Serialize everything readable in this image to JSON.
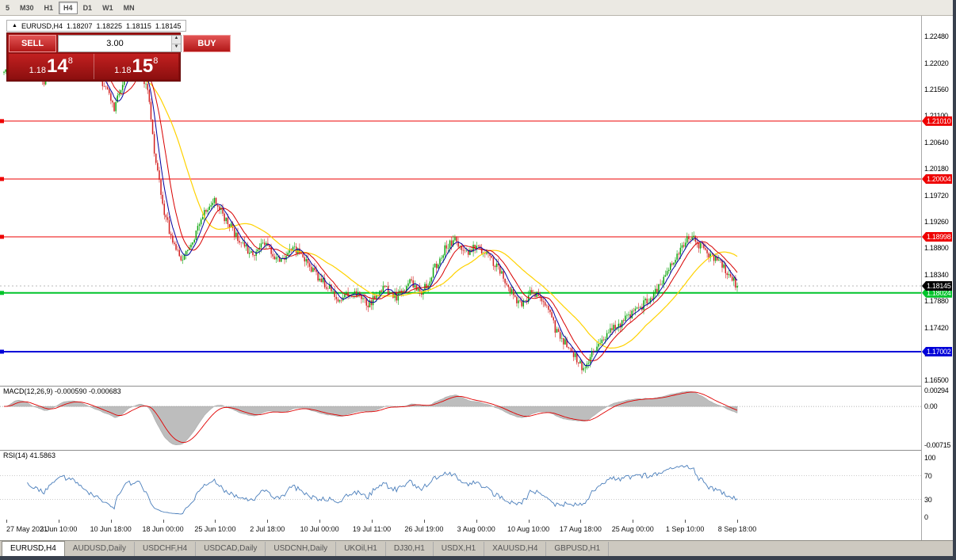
{
  "colors": {
    "bull": "#0CA50C",
    "bear": "#D32020",
    "macd_hist": "#BDBDBD",
    "macd_signal": "#E00000",
    "rsi_line": "#4A7EBB",
    "panel_red": "#C62828",
    "line_red": "#EE0000",
    "line_green": "#00C42B",
    "line_blue": "#0000D8"
  },
  "toolbar": {
    "timeframes": [
      "5",
      "M30",
      "H1",
      "H4",
      "D1",
      "W1",
      "MN"
    ],
    "active": "H4"
  },
  "chart_header": {
    "collapse_icon": "▲",
    "title": "EURUSD,H4",
    "open": "1.18207",
    "high": "1.18225",
    "low": "1.18115",
    "close": "1.18145"
  },
  "trade_panel": {
    "sell_label": "SELL",
    "buy_label": "BUY",
    "volume": "3.00",
    "spin_up_icon": "▲",
    "spin_down_icon": "▼",
    "sell_price": {
      "prefix": "1.18",
      "big": "14",
      "sup": "8"
    },
    "buy_price": {
      "prefix": "1.18",
      "big": "15",
      "sup": "8"
    }
  },
  "price_scale": {
    "values": [
      1.2248,
      1.2202,
      1.2156,
      1.211,
      1.2064,
      1.2018,
      1.1972,
      1.1926,
      1.188,
      1.1834,
      1.1788,
      1.1742,
      1.1696,
      1.165
    ]
  },
  "hlines": [
    {
      "price": 1.2101,
      "label": "1.21010",
      "color": "#EE0000",
      "width": 1
    },
    {
      "price": 1.20004,
      "label": "1.20004",
      "color": "#EE0000",
      "width": 1
    },
    {
      "price": 1.18998,
      "label": "1.18998",
      "color": "#EE0000",
      "width": 1
    },
    {
      "price": 1.18024,
      "label": "1.18024",
      "color": "#00C42B",
      "width": 2
    },
    {
      "price": 1.17002,
      "label": "1.17002",
      "color": "#0000D8",
      "width": 2
    }
  ],
  "current_price": {
    "value": 1.18145,
    "label": "1.18145",
    "color": "#000000"
  },
  "macd": {
    "label": "MACD(12,26,9) -0.000590 -0.000683",
    "values": [
      -0.00059,
      -0.000683
    ],
    "scale": [
      {
        "label": "0.00294",
        "value": 0.00294
      },
      {
        "label": "0.00",
        "value": 0
      },
      {
        "label": "-0.00715",
        "value": -0.00715
      }
    ]
  },
  "rsi": {
    "label": "RSI(14) 41.5863",
    "value": 41.5863,
    "levels": [
      70,
      30
    ],
    "scale": [
      {
        "label": "100",
        "value": 100
      },
      {
        "label": "70",
        "value": 70
      },
      {
        "label": "30",
        "value": 30
      },
      {
        "label": "0",
        "value": 0
      }
    ]
  },
  "time_axis": [
    "27 May 2021",
    "3 Jun 10:00",
    "10 Jun 18:00",
    "18 Jun 00:00",
    "25 Jun 10:00",
    "2 Jul 18:00",
    "10 Jul 00:00",
    "19 Jul 11:00",
    "26 Jul 19:00",
    "3 Aug 00:00",
    "10 Aug 10:00",
    "17 Aug 18:00",
    "25 Aug 00:00",
    "1 Sep 10:00",
    "8 Sep 18:00"
  ],
  "tabs": [
    {
      "label": "EURUSD,H4",
      "active": true
    },
    {
      "label": "AUDUSD,Daily",
      "active": false
    },
    {
      "label": "USDCHF,H4",
      "active": false
    },
    {
      "label": "USDCAD,Daily",
      "active": false
    },
    {
      "label": "USDCNH,Daily",
      "active": false
    },
    {
      "label": "UKOil,H1",
      "active": false
    },
    {
      "label": "DJ30,H1",
      "active": false
    },
    {
      "label": "USDX,H1",
      "active": false
    },
    {
      "label": "XAUUSD,H4",
      "active": false
    },
    {
      "label": "GBPUSD,H1",
      "active": false
    }
  ],
  "chart_data": {
    "type": "candlestick",
    "symbol": "EURUSD",
    "timeframe": "H4",
    "title": "EURUSD,H4",
    "last_ohlc": {
      "open": 1.18207,
      "high": 1.18225,
      "low": 1.18115,
      "close": 1.18145
    },
    "y_range": [
      1.1641,
      1.2284
    ],
    "x_labels": [
      "27 May 2021",
      "3 Jun 10:00",
      "10 Jun 18:00",
      "18 Jun 00:00",
      "25 Jun 10:00",
      "2 Jul 18:00",
      "10 Jul 00:00",
      "19 Jul 11:00",
      "26 Jul 19:00",
      "3 Aug 00:00",
      "10 Aug 10:00",
      "17 Aug 18:00",
      "25 Aug 00:00",
      "1 Sep 10:00",
      "8 Sep 18:00"
    ],
    "num_candles": 440,
    "volatility": 0.0009,
    "last_close": 1.18145,
    "price_path": [
      [
        0.0,
        1.2185
      ],
      [
        0.015,
        1.2238
      ],
      [
        0.035,
        1.2197
      ],
      [
        0.055,
        1.2172
      ],
      [
        0.075,
        1.2225
      ],
      [
        0.095,
        1.2232
      ],
      [
        0.115,
        1.22
      ],
      [
        0.135,
        1.2168
      ],
      [
        0.15,
        1.2122
      ],
      [
        0.165,
        1.218
      ],
      [
        0.182,
        1.2196
      ],
      [
        0.196,
        1.2158
      ],
      [
        0.206,
        1.204
      ],
      [
        0.216,
        1.1958
      ],
      [
        0.228,
        1.1898
      ],
      [
        0.242,
        1.1856
      ],
      [
        0.256,
        1.1884
      ],
      [
        0.272,
        1.1942
      ],
      [
        0.286,
        1.1966
      ],
      [
        0.302,
        1.193
      ],
      [
        0.32,
        1.1898
      ],
      [
        0.336,
        1.187
      ],
      [
        0.356,
        1.1886
      ],
      [
        0.376,
        1.1858
      ],
      [
        0.396,
        1.188
      ],
      [
        0.416,
        1.1848
      ],
      [
        0.436,
        1.182
      ],
      [
        0.456,
        1.1794
      ],
      [
        0.476,
        1.1806
      ],
      [
        0.496,
        1.178
      ],
      [
        0.516,
        1.1812
      ],
      [
        0.536,
        1.1796
      ],
      [
        0.556,
        1.1822
      ],
      [
        0.57,
        1.18
      ],
      [
        0.586,
        1.1842
      ],
      [
        0.602,
        1.1882
      ],
      [
        0.616,
        1.1896
      ],
      [
        0.63,
        1.187
      ],
      [
        0.646,
        1.1886
      ],
      [
        0.662,
        1.1864
      ],
      [
        0.678,
        1.1838
      ],
      [
        0.694,
        1.1798
      ],
      [
        0.706,
        1.1778
      ],
      [
        0.72,
        1.1806
      ],
      [
        0.736,
        1.1788
      ],
      [
        0.752,
        1.174
      ],
      [
        0.766,
        1.1714
      ],
      [
        0.78,
        1.169
      ],
      [
        0.792,
        1.1667
      ],
      [
        0.806,
        1.1706
      ],
      [
        0.822,
        1.1732
      ],
      [
        0.838,
        1.1746
      ],
      [
        0.854,
        1.1762
      ],
      [
        0.868,
        1.1778
      ],
      [
        0.882,
        1.1792
      ],
      [
        0.896,
        1.1816
      ],
      [
        0.91,
        1.1852
      ],
      [
        0.924,
        1.1882
      ],
      [
        0.934,
        1.1902
      ],
      [
        0.948,
        1.1886
      ],
      [
        0.962,
        1.187
      ],
      [
        0.978,
        1.1852
      ],
      [
        0.99,
        1.1832
      ],
      [
        1.0,
        1.18145
      ]
    ],
    "overlays": [
      {
        "name": "sma-slow",
        "period": 34,
        "color": "#FFD200",
        "width": 1.2
      },
      {
        "name": "sma-mid",
        "period": 13,
        "color": "#D80000",
        "width": 1
      },
      {
        "name": "sma-fast",
        "period": 6,
        "color": "#0000A0",
        "width": 1
      }
    ],
    "indicators": [
      {
        "name": "MACD",
        "params": [
          12,
          26,
          9
        ],
        "current_values": [
          -0.00059,
          -0.000683
        ]
      },
      {
        "name": "RSI",
        "params": [
          14
        ],
        "current_value": 41.5863
      }
    ]
  }
}
